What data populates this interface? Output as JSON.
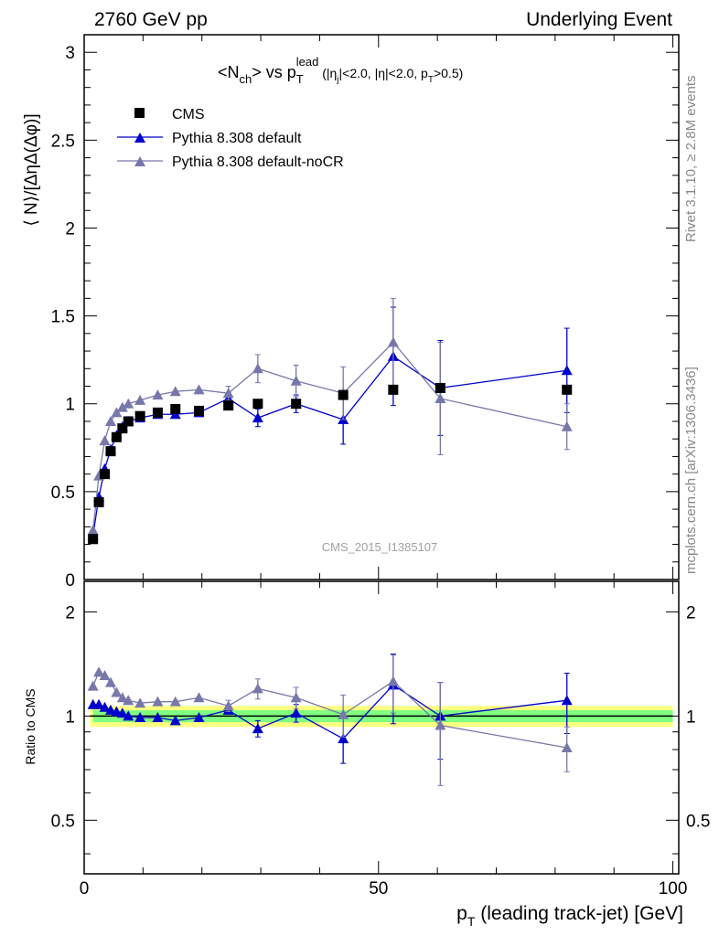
{
  "header": {
    "left": "2760 GeV pp",
    "right": "Underlying Event"
  },
  "side": {
    "rivet": "Rivet 3.1.10, ≥ 2.8M events",
    "mcplots": "mcplots.cern.ch [arXiv:1306.3436]"
  },
  "watermark": "CMS_2015_I1385107",
  "plot_title": {
    "prefix": "<N",
    "ch": "ch",
    "mid": "> vs p",
    "T": "T",
    "lead": "lead",
    "cut_a": " (|η",
    "j": "j",
    "cut_b": "|<2.0, |η|<2.0, p",
    "T2": "T",
    "cut_c": ">0.5)"
  },
  "axis": {
    "ylabel_main": "⟨ N⟩/[ΔηΔ(Δφ)]",
    "ylabel_ratio": "Ratio to CMS",
    "xlabel_p": "p",
    "xlabel_T": "T",
    "xlabel_rest": " (leading track-jet) [GeV]"
  },
  "colors": {
    "cms": "#000000",
    "default": "#0000cc",
    "nocr": "#7777aa",
    "band_inner": "#80ff80",
    "band_outer": "#ffff80"
  },
  "chart_data": [
    {
      "type": "scatter",
      "xlim": [
        0,
        101
      ],
      "ylim": [
        0,
        3.1
      ],
      "x_ticks": [
        0,
        50,
        100
      ],
      "y_ticks": [
        0.5,
        1,
        1.5,
        2,
        2.5,
        3
      ],
      "legend_position": "top-left",
      "series": [
        {
          "name": "CMS",
          "marker": "square",
          "points": [
            {
              "x": 1.5,
              "y": 0.23
            },
            {
              "x": 2.5,
              "y": 0.44
            },
            {
              "x": 3.5,
              "y": 0.6
            },
            {
              "x": 4.5,
              "y": 0.73
            },
            {
              "x": 5.5,
              "y": 0.81
            },
            {
              "x": 6.5,
              "y": 0.86
            },
            {
              "x": 7.5,
              "y": 0.9
            },
            {
              "x": 9.5,
              "y": 0.93
            },
            {
              "x": 12.5,
              "y": 0.95
            },
            {
              "x": 15.5,
              "y": 0.97
            },
            {
              "x": 19.5,
              "y": 0.96
            },
            {
              "x": 24.5,
              "y": 0.99
            },
            {
              "x": 29.5,
              "y": 1.0
            },
            {
              "x": 36,
              "y": 1.0
            },
            {
              "x": 44,
              "y": 1.05
            },
            {
              "x": 52.5,
              "y": 1.08
            },
            {
              "x": 60.5,
              "y": 1.09
            },
            {
              "x": 82,
              "y": 1.08
            }
          ]
        },
        {
          "name": "Pythia 8.308 default",
          "marker": "triangle",
          "points": [
            {
              "x": 1.5,
              "y": 0.25
            },
            {
              "x": 2.5,
              "y": 0.47
            },
            {
              "x": 3.5,
              "y": 0.63
            },
            {
              "x": 4.5,
              "y": 0.74
            },
            {
              "x": 5.5,
              "y": 0.82
            },
            {
              "x": 6.5,
              "y": 0.87
            },
            {
              "x": 7.5,
              "y": 0.9
            },
            {
              "x": 9.5,
              "y": 0.92
            },
            {
              "x": 12.5,
              "y": 0.94
            },
            {
              "x": 15.5,
              "y": 0.94
            },
            {
              "x": 19.5,
              "y": 0.95
            },
            {
              "x": 24.5,
              "y": 1.03
            },
            {
              "x": 29.5,
              "y": 0.92,
              "err": 0.05
            },
            {
              "x": 36,
              "y": 1.0,
              "err": 0.05
            },
            {
              "x": 44,
              "y": 0.91,
              "err": 0.14
            },
            {
              "x": 52.5,
              "y": 1.27,
              "err": 0.28
            },
            {
              "x": 60.5,
              "y": 1.09,
              "err": 0.27
            },
            {
              "x": 82,
              "y": 1.19,
              "err": 0.24
            }
          ]
        },
        {
          "name": "Pythia 8.308 default-noCR",
          "marker": "triangle",
          "points": [
            {
              "x": 1.5,
              "y": 0.28
            },
            {
              "x": 2.5,
              "y": 0.59
            },
            {
              "x": 3.5,
              "y": 0.79
            },
            {
              "x": 4.5,
              "y": 0.9
            },
            {
              "x": 5.5,
              "y": 0.95
            },
            {
              "x": 6.5,
              "y": 0.98
            },
            {
              "x": 7.5,
              "y": 1.0
            },
            {
              "x": 9.5,
              "y": 1.02
            },
            {
              "x": 12.5,
              "y": 1.05
            },
            {
              "x": 15.5,
              "y": 1.07
            },
            {
              "x": 19.5,
              "y": 1.08
            },
            {
              "x": 24.5,
              "y": 1.06,
              "err": 0.04
            },
            {
              "x": 29.5,
              "y": 1.2,
              "err": 0.08
            },
            {
              "x": 36,
              "y": 1.13,
              "err": 0.09
            },
            {
              "x": 44,
              "y": 1.06,
              "err": 0.15
            },
            {
              "x": 52.5,
              "y": 1.35,
              "err": 0.25
            },
            {
              "x": 60.5,
              "y": 1.03,
              "err": 0.32
            },
            {
              "x": 82,
              "y": 0.87,
              "err": 0.13
            }
          ]
        }
      ]
    },
    {
      "type": "scatter",
      "xlim": [
        0,
        101
      ],
      "ylim": [
        0.35,
        2.45
      ],
      "y_ticks": [
        0.5,
        1,
        2
      ],
      "reference_line": 1,
      "band": {
        "inner": 0.04,
        "outer": 0.07
      },
      "series": [
        {
          "name": "Pythia 8.308 default",
          "points": [
            {
              "x": 1.5,
              "y": 1.08
            },
            {
              "x": 2.5,
              "y": 1.08
            },
            {
              "x": 3.5,
              "y": 1.06
            },
            {
              "x": 4.5,
              "y": 1.04
            },
            {
              "x": 5.5,
              "y": 1.03
            },
            {
              "x": 6.5,
              "y": 1.02
            },
            {
              "x": 7.5,
              "y": 1.0
            },
            {
              "x": 9.5,
              "y": 0.99
            },
            {
              "x": 12.5,
              "y": 0.99
            },
            {
              "x": 15.5,
              "y": 0.97
            },
            {
              "x": 19.5,
              "y": 0.99
            },
            {
              "x": 24.5,
              "y": 1.04
            },
            {
              "x": 29.5,
              "y": 0.92,
              "err": 0.05
            },
            {
              "x": 36,
              "y": 1.02,
              "err": 0.06
            },
            {
              "x": 44,
              "y": 0.86,
              "err": 0.13
            },
            {
              "x": 52.5,
              "y": 1.23,
              "err": 0.28
            },
            {
              "x": 60.5,
              "y": 1.0,
              "err": 0.25
            },
            {
              "x": 82,
              "y": 1.11,
              "err": 0.22
            }
          ]
        },
        {
          "name": "Pythia 8.308 default-noCR",
          "points": [
            {
              "x": 1.5,
              "y": 1.22
            },
            {
              "x": 2.5,
              "y": 1.34
            },
            {
              "x": 3.5,
              "y": 1.31
            },
            {
              "x": 4.5,
              "y": 1.25
            },
            {
              "x": 5.5,
              "y": 1.17
            },
            {
              "x": 6.5,
              "y": 1.13
            },
            {
              "x": 7.5,
              "y": 1.11
            },
            {
              "x": 9.5,
              "y": 1.09
            },
            {
              "x": 12.5,
              "y": 1.1
            },
            {
              "x": 15.5,
              "y": 1.1
            },
            {
              "x": 19.5,
              "y": 1.13
            },
            {
              "x": 24.5,
              "y": 1.07,
              "err": 0.04
            },
            {
              "x": 29.5,
              "y": 1.2,
              "err": 0.08
            },
            {
              "x": 36,
              "y": 1.13,
              "err": 0.08
            },
            {
              "x": 44,
              "y": 1.01,
              "err": 0.14
            },
            {
              "x": 52.5,
              "y": 1.26,
              "err": 0.24
            },
            {
              "x": 60.5,
              "y": 0.94,
              "err": 0.31
            },
            {
              "x": 82,
              "y": 0.81,
              "err": 0.12
            }
          ]
        }
      ]
    }
  ]
}
